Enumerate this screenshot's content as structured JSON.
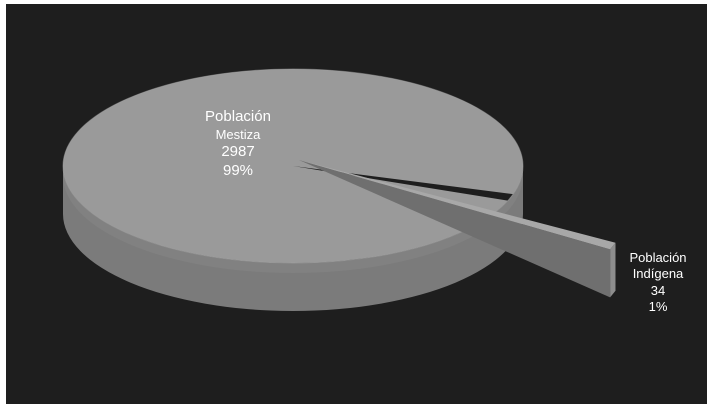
{
  "chart_data": {
    "type": "pie",
    "title": "",
    "style": "3d-exploded",
    "slices": [
      {
        "label_line1": "Población",
        "label_line2": "Mestiza",
        "value": "2987",
        "percent": "99%",
        "num": 2987,
        "color": "#9a9a9a"
      },
      {
        "label_line1": "Población",
        "label_line2": "Indígena",
        "value": "34",
        "percent": "1%",
        "num": 34,
        "color": "#9a9a9a"
      }
    ],
    "background": "#1e1e1e"
  }
}
